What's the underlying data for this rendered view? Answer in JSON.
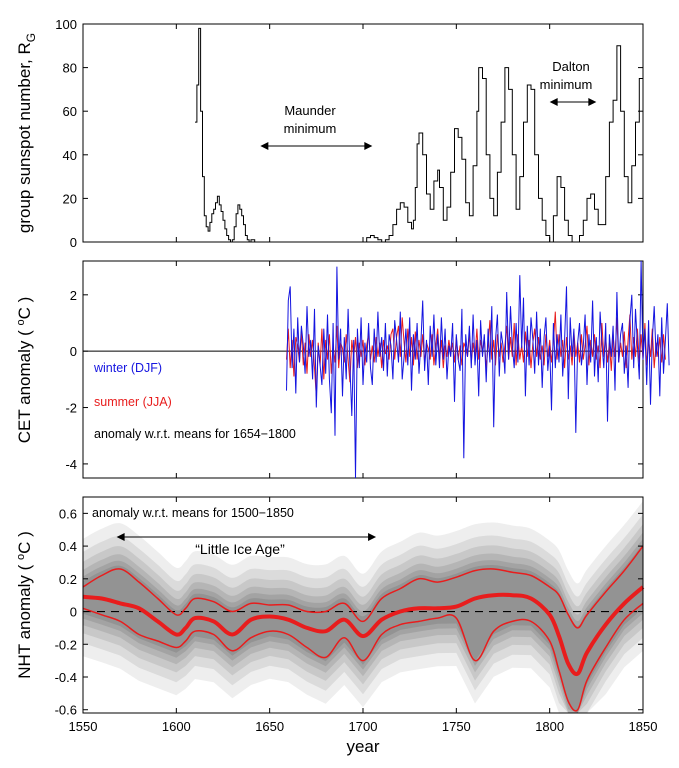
{
  "colors": {
    "black": "#000000",
    "blue": "#1515e0",
    "red": "#e81d1d",
    "ensemble": "#555555"
  },
  "chart_data": [
    {
      "type": "line",
      "ylabel": "group sunspot number, R",
      "ylabel_sub": "G",
      "xlim": [
        1550,
        1850
      ],
      "ylim": [
        0,
        100
      ],
      "yticks": [
        0,
        20,
        40,
        60,
        80,
        100
      ],
      "annotations": {
        "maunder_line1": "Maunder",
        "maunder_line2": "minimum",
        "dalton_line1": "Dalton",
        "dalton_line2": "minimum"
      },
      "annotation_ranges": {
        "maunder": [
          1645,
          1705
        ],
        "dalton": [
          1800,
          1825
        ]
      },
      "series": [
        {
          "name": "group sunspot number",
          "color": "#000000",
          "x": [
            1610,
            1611,
            1612,
            1613,
            1614,
            1615,
            1616,
            1617,
            1618,
            1619,
            1620,
            1621,
            1622,
            1623,
            1624,
            1625,
            1626,
            1627,
            1628,
            1629,
            1630,
            1631,
            1632,
            1633,
            1634,
            1635,
            1636,
            1637,
            1638,
            1639,
            1640,
            1641,
            1642,
            1643,
            1644,
            1645,
            1646,
            1647,
            1648,
            1649,
            1650,
            1652,
            1655,
            1660,
            1665,
            1670,
            1675,
            1680,
            1685,
            1690,
            1695,
            1700,
            1702,
            1704,
            1706,
            1708,
            1710,
            1712,
            1714,
            1716,
            1718,
            1720,
            1722,
            1724,
            1726,
            1727,
            1728,
            1729,
            1730,
            1732,
            1734,
            1736,
            1738,
            1740,
            1741,
            1743,
            1745,
            1747,
            1749,
            1751,
            1753,
            1755,
            1757,
            1759,
            1761,
            1762,
            1764,
            1766,
            1768,
            1770,
            1772,
            1774,
            1776,
            1778,
            1780,
            1782,
            1784,
            1786,
            1788,
            1790,
            1792,
            1794,
            1796,
            1798,
            1800,
            1802,
            1804,
            1806,
            1808,
            1810,
            1812,
            1814,
            1816,
            1818,
            1820,
            1822,
            1824,
            1826,
            1828,
            1830,
            1832,
            1834,
            1836,
            1838,
            1840,
            1842,
            1844,
            1846,
            1848,
            1850
          ],
          "values": [
            55,
            72,
            98,
            60,
            30,
            12,
            7,
            5,
            9,
            13,
            15,
            18,
            21,
            17,
            14,
            10,
            6,
            3,
            1,
            0,
            1,
            7,
            13,
            17,
            15,
            12,
            8,
            3,
            1,
            0,
            1,
            1,
            0,
            0,
            0,
            0,
            0,
            0,
            0,
            0,
            0,
            0,
            0,
            0,
            0,
            0,
            0,
            0,
            0,
            0,
            0,
            0,
            2,
            3,
            2,
            1,
            0,
            1,
            3,
            8,
            15,
            18,
            16,
            9,
            6,
            10,
            25,
            45,
            50,
            40,
            22,
            15,
            28,
            33,
            25,
            10,
            16,
            32,
            52,
            48,
            38,
            18,
            12,
            35,
            60,
            80,
            75,
            40,
            20,
            12,
            32,
            55,
            80,
            70,
            40,
            15,
            30,
            55,
            72,
            70,
            40,
            20,
            10,
            3,
            0,
            12,
            30,
            25,
            10,
            3,
            0,
            0,
            3,
            10,
            20,
            22,
            15,
            8,
            8,
            30,
            55,
            65,
            90,
            60,
            30,
            18,
            35,
            55,
            75,
            68
          ]
        }
      ]
    },
    {
      "type": "line",
      "ylabel": "CET anomaly ( °C )",
      "xlim": [
        1550,
        1850
      ],
      "ylim": [
        -4.5,
        3.2
      ],
      "yticks": [
        -4,
        -2,
        0,
        2
      ],
      "legend": {
        "winter": "winter (DJF)",
        "summer": "summer (JJA)",
        "note": "anomaly w.r.t. means for 1654−1800"
      },
      "series": [
        {
          "name": "winter (DJF)",
          "color": "#1515e0",
          "x_start": 1659,
          "values": [
            -1.4,
            1.8,
            2.3,
            -0.6,
            0.8,
            -1.5,
            1.2,
            -0.4,
            0.9,
            0.2,
            -0.8,
            1.6,
            -0.2,
            0.4,
            -1.0,
            1.5,
            -2.0,
            0.2,
            -0.5,
            -1.2,
            0.8,
            -0.8,
            1.3,
            -1.0,
            -2.2,
            1.0,
            -3.0,
            3.0,
            -0.3,
            0.8,
            -1.6,
            0.5,
            -1.0,
            1.5,
            -0.5,
            -2.3,
            0.4,
            -4.5,
            0.8,
            -0.6,
            1.2,
            -1.2,
            0.3,
            -0.4,
            1.0,
            -0.6,
            -1.2,
            0.8,
            -0.4,
            1.4,
            -0.2,
            0.5,
            -0.7,
            1.0,
            -0.9,
            0.6,
            0.2,
            -1.0,
            1.1,
            0.4,
            -0.4,
            1.4,
            -1.0,
            -0.2,
            0.8,
            -0.5,
            1.2,
            -1.4,
            0.6,
            -0.3,
            1.0,
            -0.8,
            0.3,
            1.8,
            -0.7,
            0.4,
            -1.2,
            0.9,
            -0.2,
            1.3,
            -0.5,
            0.6,
            -0.6,
            1.2,
            -0.3,
            0.8,
            -1.0,
            0.2,
            -0.2,
            1.0,
            -1.8,
            0.6,
            -0.3,
            -0.7,
            1.5,
            -3.8,
            0.6,
            -0.2,
            0.9,
            -0.6,
            1.3,
            -0.5,
            0.4,
            -1.6,
            1.1,
            -0.2,
            0.6,
            -1.1,
            0.8,
            -0.4,
            1.6,
            -2.7,
            0.4,
            1.3,
            -0.9,
            0.7,
            0.2,
            -0.8,
            2.1,
            -0.3,
            1.6,
            0.2,
            -0.6,
            1.0,
            -0.4,
            2.7,
            0.1,
            1.9,
            -1.6,
            0.9,
            -0.5,
            1.2,
            0.4,
            -0.8,
            1.4,
            -0.5,
            0.8,
            -1.3,
            0.5,
            1.2,
            -0.7,
            0.2,
            -2.1,
            1.0,
            -0.6,
            0.6,
            -0.4,
            1.3,
            -0.9,
            0.4,
            2.3,
            -1.7,
            1.2,
            -0.2,
            0.8,
            -2.9,
            0.3,
            1.0,
            -0.5,
            0.2,
            1.3,
            -1.2,
            0.6,
            -0.4,
            1.8,
            -0.9,
            0.5,
            -1.1,
            1.4,
            0.3,
            -0.6,
            1.0,
            -2.5,
            0.6,
            -0.2,
            0.9,
            -1.4,
            2.1,
            -0.4,
            0.6,
            1.0,
            -0.8,
            0.2,
            -1.3,
            1.1,
            2.0,
            -0.6,
            1.5,
            0.2,
            -1.0,
            3.2,
            -0.3,
            0.8,
            -1.2,
            1.1,
            -1.9,
            0.4,
            1.6,
            -0.2,
            0.6,
            -1.6,
            1.2,
            -0.8,
            0.4,
            1.7,
            -0.5
          ]
        },
        {
          "name": "summer (JJA)",
          "color": "#e81d1d",
          "x_start": 1659,
          "values": [
            -0.3,
            0.8,
            -0.6,
            0.4,
            -0.9,
            0.5,
            0.2,
            -0.4,
            0.7,
            -0.5,
            0.3,
            -0.8,
            0.6,
            -0.2,
            0.4,
            -0.6,
            -1.6,
            0.3,
            -0.5,
            0.8,
            -1.0,
            0.4,
            -0.3,
            0.6,
            -0.8,
            0.2,
            -0.4,
            0.9,
            -0.6,
            0.3,
            0.1,
            -0.4,
            0.6,
            -0.3,
            -1.1,
            0.4,
            -0.2,
            0.5,
            -0.6,
            0.3,
            -0.2,
            0.4,
            -0.5,
            0.2,
            0.6,
            -0.3,
            0.2,
            -0.4,
            0.5,
            -0.2,
            0.3,
            -0.6,
            0.4,
            -0.1,
            0.2,
            -0.3,
            0.6,
            0.8,
            -0.3,
            0.5,
            0.9,
            -0.2,
            1.2,
            0.3,
            -0.4,
            0.8,
            -0.2,
            0.5,
            -0.5,
            0.7,
            -0.3,
            0.4,
            -0.2,
            0.6,
            -0.4,
            0.3,
            0.1,
            -0.3,
            0.6,
            -0.5,
            0.2,
            0.8,
            -0.3,
            0.4,
            -0.6,
            0.2,
            -0.2,
            0.4,
            -0.1,
            0.3,
            -0.4,
            0.5,
            -0.3,
            0.2,
            -0.5,
            0.3,
            0.1,
            -0.2,
            0.6,
            -0.4,
            0.3,
            -0.2,
            0.8,
            -0.3,
            0.4,
            -0.1,
            0.5,
            -0.6,
            0.2,
            1.1,
            -0.3,
            0.4,
            -0.5,
            0.6,
            -0.2,
            0.3,
            -0.4,
            0.2,
            0.9,
            -0.3,
            0.5,
            -0.2,
            1.0,
            -0.5,
            0.6,
            -0.3,
            0.2,
            -0.4,
            0.7,
            -0.2,
            0.4,
            -0.6,
            0.3,
            0.8,
            -0.2,
            0.5,
            -0.3,
            0.2,
            -0.5,
            0.6,
            -0.2,
            0.4,
            -0.4,
            0.3,
            1.4,
            -0.3,
            0.6,
            -0.2,
            0.4,
            -0.6,
            0.5,
            -0.3,
            0.2,
            -0.5,
            0.7,
            -0.2,
            0.3,
            -0.4,
            0.6,
            -0.3,
            0.2,
            0.9,
            -0.5,
            0.4,
            -0.2,
            0.6,
            -0.3,
            0.2,
            -0.6,
            1.0,
            -0.2,
            0.5,
            -0.4,
            0.3,
            -0.7,
            0.6,
            -0.2,
            1.2,
            -0.4,
            0.3,
            -0.2,
            0.7,
            -0.6,
            0.4,
            1.3,
            -0.3,
            0.5,
            -0.2,
            0.8,
            -0.4,
            0.6,
            -0.3,
            1.0,
            -0.5,
            0.4,
            -0.2,
            0.8,
            -0.6,
            0.3,
            -0.2,
            0.5,
            -0.4,
            0.6,
            -0.3
          ]
        }
      ]
    },
    {
      "type": "line",
      "ylabel": "NHT anomaly ( °C )",
      "xlabel": "year",
      "xlim": [
        1550,
        1850
      ],
      "ylim": [
        -0.62,
        0.7
      ],
      "yticks": [
        -0.6,
        -0.4,
        -0.2,
        0,
        0.2,
        0.4,
        0.6
      ],
      "xticks": [
        1550,
        1600,
        1650,
        1700,
        1750,
        1800,
        1850
      ],
      "annotations": {
        "note": "anomaly w.r.t. means for 1500−1850",
        "lia": "“Little Ice Age”"
      },
      "annotation_ranges": {
        "lia": [
          1568,
          1707
        ]
      },
      "x": [
        1550,
        1560,
        1570,
        1580,
        1590,
        1600,
        1605,
        1610,
        1620,
        1630,
        1640,
        1650,
        1660,
        1670,
        1680,
        1690,
        1700,
        1710,
        1720,
        1730,
        1740,
        1750,
        1760,
        1770,
        1780,
        1790,
        1800,
        1805,
        1810,
        1815,
        1820,
        1830,
        1840,
        1850
      ],
      "series": [
        {
          "name": "mean",
          "values": [
            0.09,
            0.08,
            0.05,
            0.02,
            -0.06,
            -0.14,
            -0.1,
            -0.04,
            -0.06,
            -0.14,
            -0.05,
            -0.03,
            -0.05,
            -0.1,
            -0.12,
            -0.05,
            -0.15,
            -0.05,
            0.0,
            0.02,
            0.02,
            0.03,
            0.08,
            0.1,
            0.1,
            0.08,
            -0.02,
            -0.15,
            -0.32,
            -0.38,
            -0.25,
            -0.08,
            0.05,
            0.15
          ]
        },
        {
          "name": "upper",
          "values": [
            0.15,
            0.22,
            0.26,
            0.18,
            0.08,
            -0.02,
            0.02,
            0.08,
            0.06,
            0.0,
            0.05,
            0.04,
            0.04,
            0.0,
            0.0,
            0.05,
            -0.06,
            0.08,
            0.14,
            0.2,
            0.18,
            0.21,
            0.25,
            0.26,
            0.24,
            0.22,
            0.15,
            0.1,
            -0.02,
            -0.1,
            -0.02,
            0.12,
            0.25,
            0.4
          ]
        },
        {
          "name": "lower",
          "values": [
            0.02,
            -0.02,
            -0.06,
            -0.14,
            -0.18,
            -0.22,
            -0.18,
            -0.12,
            -0.14,
            -0.24,
            -0.16,
            -0.12,
            -0.14,
            -0.22,
            -0.28,
            -0.16,
            -0.3,
            -0.14,
            -0.08,
            -0.06,
            -0.04,
            -0.04,
            -0.3,
            -0.12,
            -0.06,
            -0.06,
            -0.18,
            -0.36,
            -0.55,
            -0.6,
            -0.42,
            -0.22,
            -0.05,
            0.05
          ]
        }
      ]
    }
  ]
}
